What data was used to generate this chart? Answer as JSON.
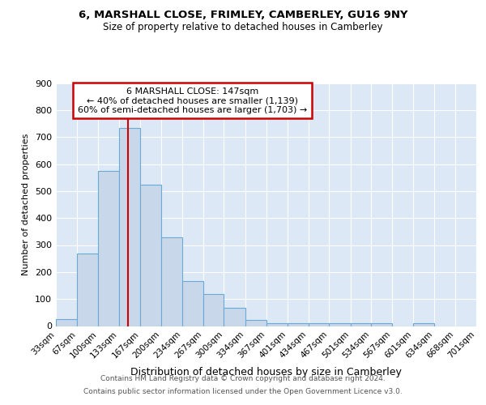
{
  "title1": "6, MARSHALL CLOSE, FRIMLEY, CAMBERLEY, GU16 9NY",
  "title2": "Size of property relative to detached houses in Camberley",
  "xlabel": "Distribution of detached houses by size in Camberley",
  "ylabel": "Number of detached properties",
  "bin_edges": [
    33,
    67,
    100,
    133,
    167,
    200,
    234,
    267,
    300,
    334,
    367,
    401,
    434,
    467,
    501,
    534,
    567,
    601,
    634,
    668,
    701
  ],
  "bar_heights": [
    27,
    270,
    575,
    735,
    525,
    330,
    168,
    118,
    68,
    22,
    12,
    12,
    12,
    10,
    10,
    10,
    0,
    10,
    0,
    0
  ],
  "bar_color": "#c8d8ea",
  "bar_edge_color": "#6aaad4",
  "vline_x": 147,
  "vline_color": "#cc0000",
  "annotation_text": "6 MARSHALL CLOSE: 147sqm\n← 40% of detached houses are smaller (1,139)\n60% of semi-detached houses are larger (1,703) →",
  "annotation_box_color": "#cc0000",
  "yticks": [
    0,
    100,
    200,
    300,
    400,
    500,
    600,
    700,
    800,
    900
  ],
  "ylim": [
    0,
    900
  ],
  "bg_color": "#dce8f5",
  "grid_color": "#ffffff",
  "footnote1": "Contains HM Land Registry data © Crown copyright and database right 2024.",
  "footnote2": "Contains public sector information licensed under the Open Government Licence v3.0."
}
